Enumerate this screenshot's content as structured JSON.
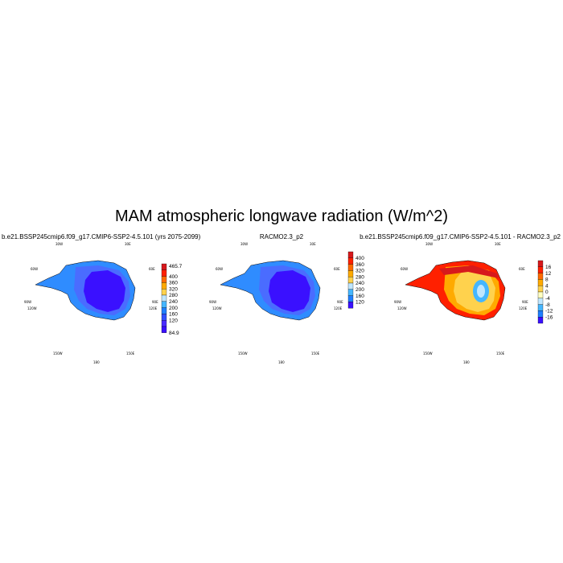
{
  "figure": {
    "title": "MAM atmospheric longwave radiation (W/m^2)"
  },
  "panels": [
    {
      "title": "b.e21.BSSP245cmip6.f09_g17.CMIP6-SSP2-4.5.101 (yrs 2075-2099)",
      "lon_labels": [
        "30W",
        "30E",
        "60W",
        "60E",
        "90W",
        "90E",
        "120W",
        "120E",
        "150W",
        "150E",
        "180"
      ],
      "colorbar": {
        "labels": [
          "465.7",
          "400",
          "360",
          "320",
          "280",
          "240",
          "200",
          "160",
          "120",
          "84.9"
        ],
        "colors": [
          "#d7191c",
          "#ff2000",
          "#ff6a00",
          "#ffaa00",
          "#ffd24d",
          "#bfe6ff",
          "#45b6ff",
          "#1f7fff",
          "#3050ff",
          "#4a2cff",
          "#3a10ff"
        ]
      }
    },
    {
      "title": "RACMO2.3_p2",
      "lon_labels": [
        "30W",
        "30E",
        "60W",
        "60E",
        "90W",
        "90E",
        "120W",
        "120E",
        "150W",
        "150E",
        "180"
      ],
      "colorbar": {
        "labels": [
          "400",
          "360",
          "320",
          "280",
          "240",
          "200",
          "160",
          "120"
        ],
        "colors": [
          "#d7191c",
          "#ff2000",
          "#ff6a00",
          "#ffaa00",
          "#ffd24d",
          "#bfe6ff",
          "#45b6ff",
          "#1f7fff",
          "#3a10ff"
        ]
      }
    },
    {
      "title": "b.e21.BSSP245cmip6.f09_g17.CMIP6-SSP2-4.5.101 - RACMO2.3_p2",
      "lon_labels": [
        "30W",
        "30E",
        "60W",
        "60E",
        "90W",
        "90E",
        "120W",
        "120E",
        "150W",
        "150E",
        "180"
      ],
      "colorbar": {
        "labels": [
          "16",
          "12",
          "8",
          "4",
          "0",
          "-4",
          "-8",
          "-12",
          "-16"
        ],
        "colors": [
          "#d7191c",
          "#ff2000",
          "#ff6a00",
          "#ffaa00",
          "#ffd24d",
          "#ffffc0",
          "#bfe6ff",
          "#45b6ff",
          "#1f7fff",
          "#3a10ff"
        ]
      }
    }
  ]
}
